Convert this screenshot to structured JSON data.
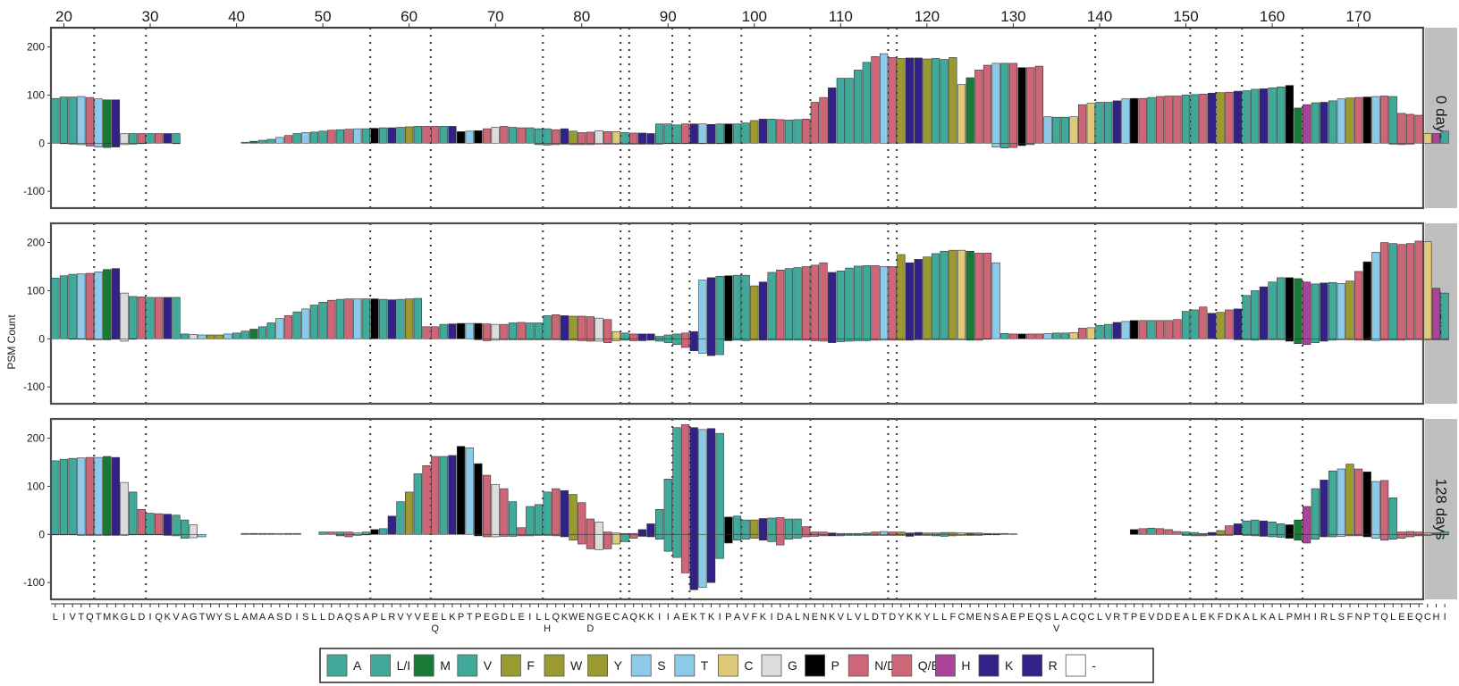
{
  "chart_data": {
    "type": "bar",
    "ylabel": "PSM Count",
    "ylim": [
      -135,
      240
    ],
    "y_ticks": [
      -100,
      0,
      100,
      200
    ],
    "x_ticks_top": [
      20,
      30,
      40,
      50,
      60,
      70,
      80,
      90,
      100,
      110,
      120,
      130,
      140,
      150,
      160,
      170
    ],
    "x_range": [
      19,
      178
    ],
    "position_lines": [
      24,
      30,
      56,
      63,
      76,
      85,
      86,
      91,
      93,
      99,
      107,
      116,
      117,
      140,
      151,
      154,
      157,
      164
    ],
    "sequence": "LIVTQTMKGLDIQKVAGTWYSLAMAASDISLLDAQSAPLRVYVEELKPTPEGDLEILLQKWENGECAQKKIIAEKTKIPAVFKIDALNENKVLVLDTDYKKYLLFCMENSAEPEQSLACQCLVRTPEVDDEALEKFDKALKALPMHIRLSFNPTQLEEQCHI",
    "variants": [
      {
        "position": 63,
        "residue": "Q"
      },
      {
        "position": 76,
        "residue": "H"
      },
      {
        "position": 81,
        "residue": "D"
      },
      {
        "position": 135,
        "residue": "V"
      }
    ],
    "legend": [
      {
        "label": "A",
        "color": "#40a999"
      },
      {
        "label": "L/I",
        "color": "#40a999"
      },
      {
        "label": "M",
        "color": "#187a35"
      },
      {
        "label": "V",
        "color": "#40a999"
      },
      {
        "label": "F",
        "color": "#9a9a30"
      },
      {
        "label": "W",
        "color": "#9a9a30"
      },
      {
        "label": "Y",
        "color": "#9a9a30"
      },
      {
        "label": "S",
        "color": "#8ccaea"
      },
      {
        "label": "T",
        "color": "#8ccaea"
      },
      {
        "label": "C",
        "color": "#ddcb7a"
      },
      {
        "label": "G",
        "color": "#dcdcdc"
      },
      {
        "label": "P",
        "color": "#000000"
      },
      {
        "label": "N/D",
        "color": "#cd6677"
      },
      {
        "label": "Q/E",
        "color": "#cd6677"
      },
      {
        "label": "H",
        "color": "#a94499"
      },
      {
        "label": "K",
        "color": "#322288"
      },
      {
        "label": "R",
        "color": "#322288"
      },
      {
        "label": "-",
        "color": "#ffffff"
      }
    ],
    "panels": [
      {
        "label": "0 days",
        "positive": [
          93,
          96,
          96,
          97,
          95,
          92,
          90,
          90,
          20,
          20,
          20,
          20,
          20,
          20,
          20,
          0,
          0,
          0,
          0,
          0,
          0,
          0,
          2,
          4,
          6,
          8,
          12,
          16,
          20,
          22,
          23,
          25,
          27,
          28,
          29,
          30,
          30,
          31,
          32,
          32,
          33,
          34,
          35,
          35,
          35,
          35,
          35,
          24,
          25,
          26,
          30,
          33,
          35,
          33,
          32,
          32,
          30,
          30,
          28,
          30,
          25,
          22,
          23,
          26,
          24,
          24,
          22,
          21,
          21,
          20,
          40,
          40,
          38,
          40,
          40,
          40,
          39,
          40,
          40,
          40,
          42,
          47,
          50,
          50,
          49,
          48,
          49,
          50,
          85,
          95,
          115,
          135,
          135,
          152,
          168,
          180,
          186,
          178,
          176,
          177,
          177,
          175,
          176,
          174,
          178,
          122,
          136,
          152,
          162,
          166,
          166,
          166,
          157,
          157,
          160,
          55,
          54,
          54,
          55,
          80,
          83,
          85,
          85,
          88,
          92,
          93,
          93,
          95,
          97,
          98,
          98,
          100,
          101,
          102,
          104,
          105,
          106,
          108,
          109,
          112,
          113,
          115,
          117,
          120,
          73,
          80,
          84,
          85,
          88,
          92,
          94,
          95,
          96,
          97,
          98,
          97,
          62,
          60,
          58,
          20,
          20,
          25,
          90,
          115,
          124,
          120,
          123,
          126,
          127,
          38,
          40,
          40,
          40,
          40,
          42,
          43,
          43,
          45,
          45,
          45,
          45,
          45,
          45,
          45,
          45,
          45
        ],
        "negative": [
          0,
          -1,
          -2,
          -3,
          -6,
          -8,
          -9,
          -8,
          -3,
          -2,
          -1,
          0,
          0,
          0,
          -1,
          0,
          0,
          0,
          0,
          0,
          0,
          0,
          0,
          0,
          0,
          0,
          0,
          0,
          0,
          0,
          0,
          0,
          0,
          0,
          0,
          0,
          0,
          0,
          0,
          0,
          0,
          0,
          0,
          0,
          0,
          0,
          0,
          0,
          0,
          0,
          0,
          0,
          0,
          0,
          0,
          0,
          -3,
          -4,
          -3,
          -2,
          -3,
          -3,
          -3,
          -2,
          -2,
          -2,
          -2,
          -2,
          -2,
          -2,
          -2,
          -1,
          -1,
          -1,
          -1,
          -1,
          -1,
          -1,
          -1,
          0,
          0,
          0,
          0,
          0,
          0,
          0,
          0,
          0,
          0,
          0,
          0,
          0,
          0,
          0,
          0,
          0,
          0,
          0,
          0,
          0,
          0,
          0,
          0,
          0,
          0,
          0,
          0,
          0,
          0,
          -8,
          -10,
          -9,
          -5,
          -3,
          0,
          0,
          0,
          0,
          0,
          0,
          0,
          0,
          0,
          0,
          0,
          0,
          0,
          0,
          0,
          0,
          0,
          0,
          0,
          0,
          0,
          0,
          0,
          0,
          0,
          0,
          0,
          0,
          0,
          0,
          0,
          0,
          0,
          0,
          0,
          0,
          0,
          0,
          0,
          0,
          0,
          -2,
          -3,
          -2,
          0,
          0,
          0,
          0,
          -1,
          -2,
          -1,
          0,
          0,
          0,
          0,
          0,
          0,
          0,
          0,
          0,
          0,
          0,
          0,
          0,
          0,
          0,
          0,
          0,
          0
        ]
      },
      {
        "label": "4 days",
        "positive": [
          126,
          131,
          134,
          135,
          136,
          139,
          144,
          146,
          95,
          88,
          87,
          86,
          86,
          86,
          86,
          10,
          9,
          8,
          8,
          8,
          10,
          12,
          16,
          20,
          25,
          33,
          42,
          48,
          56,
          62,
          70,
          76,
          80,
          82,
          83,
          83,
          83,
          83,
          82,
          81,
          82,
          83,
          84,
          25,
          25,
          30,
          31,
          32,
          32,
          32,
          31,
          30,
          30,
          33,
          34,
          33,
          33,
          48,
          50,
          48,
          47,
          47,
          46,
          43,
          40,
          15,
          12,
          10,
          10,
          10,
          5,
          8,
          10,
          12,
          15,
          122,
          127,
          130,
          131,
          132,
          132,
          110,
          118,
          138,
          143,
          146,
          148,
          150,
          153,
          158,
          138,
          141,
          147,
          151,
          152,
          152,
          150,
          150,
          175,
          158,
          165,
          170,
          177,
          182,
          184,
          184,
          182,
          178,
          178,
          158,
          11,
          10,
          10,
          10,
          10,
          11,
          12,
          12,
          13,
          22,
          23,
          28,
          30,
          34,
          36,
          38,
          38,
          38,
          38,
          38,
          40,
          57,
          60,
          66,
          53,
          55,
          60,
          62,
          90,
          100,
          108,
          118,
          127,
          127,
          125,
          118,
          114,
          116,
          117,
          115,
          120,
          140,
          160,
          180,
          200,
          198,
          196,
          198,
          203,
          202,
          105,
          95,
          100,
          96,
          95,
          53,
          60,
          64,
          66,
          67,
          66,
          66,
          65,
          64,
          64
        ],
        "negative": [
          0,
          0,
          -1,
          -1,
          -2,
          -2,
          -2,
          -1,
          -5,
          -1,
          0,
          0,
          0,
          0,
          0,
          0,
          0,
          0,
          0,
          0,
          0,
          0,
          0,
          0,
          0,
          0,
          0,
          0,
          0,
          0,
          0,
          0,
          0,
          0,
          0,
          0,
          0,
          0,
          0,
          0,
          0,
          0,
          0,
          0,
          0,
          0,
          0,
          0,
          0,
          -2,
          -4,
          -3,
          -2,
          -2,
          -2,
          -2,
          -2,
          -2,
          -2,
          -3,
          -3,
          -4,
          -5,
          -5,
          -8,
          -4,
          -3,
          -4,
          -4,
          -3,
          -5,
          -8,
          -12,
          -18,
          -25,
          -30,
          -35,
          -33,
          -4,
          -3,
          -4,
          -3,
          -3,
          -3,
          -3,
          -3,
          -3,
          -3,
          -4,
          -5,
          -8,
          -6,
          -5,
          -4,
          -4,
          -3,
          -3,
          -3,
          -3,
          -3,
          -2,
          -2,
          -2,
          -2,
          -2,
          -2,
          -3,
          -3,
          -1,
          0,
          0,
          0,
          0,
          0,
          0,
          0,
          0,
          0,
          0,
          0,
          0,
          0,
          0,
          0,
          0,
          0,
          0,
          0,
          0,
          0,
          0,
          0,
          0,
          0,
          0,
          0,
          0,
          -2,
          -2,
          -3,
          -2,
          -2,
          -2,
          -5,
          -10,
          -12,
          -8,
          -5,
          -3,
          -2,
          -2,
          -3,
          -3,
          -4,
          -3,
          -3,
          -3,
          -2,
          -2,
          -2,
          -2,
          -2,
          -2,
          -2,
          -3,
          -5,
          -4,
          -3,
          -2,
          -2,
          -2,
          -2,
          -2,
          -2,
          -2
        ]
      },
      {
        "label": "128 days",
        "positive": [
          153,
          156,
          158,
          159,
          160,
          160,
          162,
          160,
          108,
          88,
          52,
          44,
          43,
          42,
          40,
          30,
          20,
          0,
          0,
          0,
          0,
          0,
          2,
          2,
          2,
          2,
          2,
          2,
          2,
          0,
          0,
          5,
          5,
          5,
          5,
          3,
          5,
          10,
          12,
          38,
          68,
          88,
          126,
          143,
          162,
          162,
          164,
          183,
          180,
          147,
          123,
          104,
          95,
          68,
          14,
          58,
          62,
          88,
          95,
          91,
          83,
          66,
          32,
          26,
          5,
          3,
          2,
          2,
          10,
          22,
          52,
          115,
          222,
          228,
          222,
          218,
          220,
          210,
          36,
          38,
          30,
          30,
          33,
          34,
          35,
          32,
          32,
          16,
          5,
          5,
          3,
          2,
          2,
          2,
          3,
          5,
          6,
          5,
          5,
          3,
          4,
          3,
          3,
          4,
          4,
          3,
          3,
          3,
          2,
          2,
          2,
          1,
          0,
          0,
          0,
          0,
          0,
          0,
          0,
          0,
          0,
          0,
          0,
          0,
          0,
          10,
          12,
          13,
          12,
          10,
          6,
          5,
          4,
          2,
          4,
          8,
          18,
          22,
          28,
          30,
          28,
          26,
          22,
          20,
          30,
          58,
          95,
          113,
          132,
          136,
          146,
          136,
          130,
          110,
          112,
          76,
          5,
          6,
          5,
          3,
          3,
          5,
          5,
          4,
          3,
          2,
          2,
          2,
          2,
          2
        ],
        "negative": [
          -1,
          -1,
          -1,
          -2,
          -2,
          -2,
          -2,
          -2,
          -2,
          -1,
          -1,
          -1,
          -1,
          -2,
          -3,
          -8,
          -7,
          -5,
          0,
          0,
          0,
          0,
          0,
          0,
          0,
          0,
          0,
          0,
          0,
          0,
          0,
          0,
          0,
          -3,
          -5,
          -2,
          -1,
          0,
          0,
          0,
          0,
          0,
          0,
          0,
          0,
          0,
          0,
          0,
          0,
          -3,
          -5,
          -5,
          -4,
          -4,
          -3,
          -3,
          -2,
          -2,
          -3,
          -5,
          -12,
          -20,
          -30,
          -32,
          -30,
          -20,
          -15,
          -8,
          -4,
          -5,
          -10,
          -35,
          -48,
          -80,
          -115,
          -110,
          -100,
          -50,
          -18,
          -12,
          -10,
          -8,
          -12,
          -15,
          -22,
          -10,
          -8,
          -5,
          -4,
          -3,
          -3,
          -3,
          -2,
          -2,
          -2,
          -2,
          -2,
          -2,
          -2,
          -4,
          -2,
          -2,
          -3,
          -4,
          -3,
          -2,
          -2,
          -2,
          -1,
          -1,
          0,
          0,
          0,
          0,
          0,
          0,
          0,
          0,
          0,
          0,
          0,
          0,
          0,
          0,
          0,
          0,
          0,
          0,
          0,
          0,
          0,
          -2,
          -3,
          -3,
          -2,
          -2,
          -2,
          -1,
          -2,
          -3,
          -4,
          -5,
          -6,
          -8,
          -12,
          -18,
          -10,
          -5,
          -5,
          -4,
          -3,
          -3,
          -5,
          -8,
          -12,
          -10,
          -8,
          -5,
          -3,
          -2,
          -1,
          -1,
          -1,
          -1,
          -1,
          -1,
          -2,
          -3,
          -4,
          -5,
          -4,
          -3,
          -2,
          -2
        ]
      }
    ]
  }
}
